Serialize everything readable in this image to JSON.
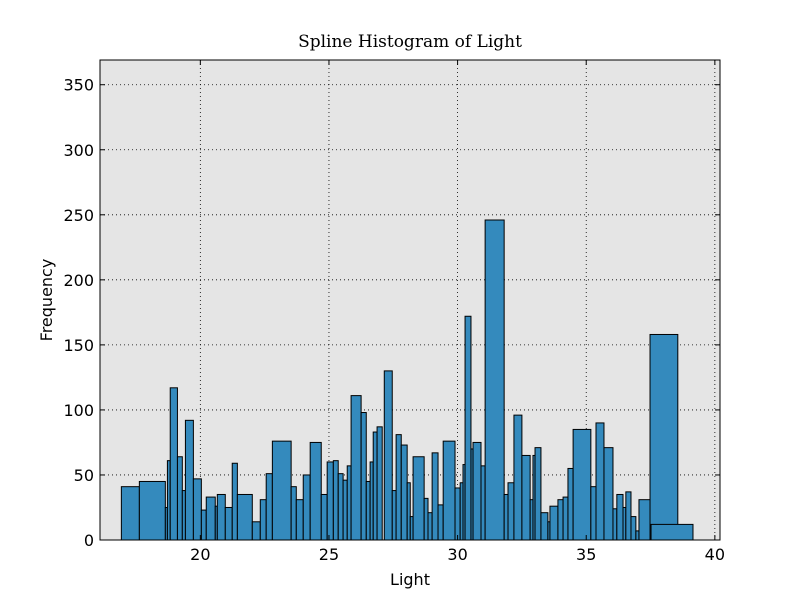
{
  "chart_data": {
    "type": "histogram",
    "title": "Spline Histogram of Light",
    "xlabel": "Light",
    "ylabel": "Frequency",
    "color": "#348abd",
    "background": "#e5e5e5",
    "grid": true,
    "xlim": [
      16.1,
      40.2
    ],
    "ylim": [
      0,
      369
    ],
    "xticks": [
      20,
      25,
      30,
      35,
      40
    ],
    "yticks": [
      0,
      50,
      100,
      150,
      200,
      250,
      300,
      350
    ],
    "x_start": [
      16.93,
      17.63,
      18.64,
      18.72,
      18.83,
      19.11,
      19.3,
      19.42,
      19.73,
      20.04,
      20.23,
      20.58,
      20.66,
      20.97,
      21.24,
      21.44,
      22.02,
      22.33,
      22.56,
      22.8,
      23.53,
      23.73,
      24.0,
      24.27,
      24.7,
      24.93,
      25.17,
      25.36,
      25.55,
      25.71,
      25.86,
      26.25,
      26.45,
      26.6,
      26.72,
      26.87,
      27.15,
      27.46,
      27.61,
      27.81,
      28.04,
      28.16,
      28.27,
      28.7,
      28.85,
      29.01,
      29.24,
      29.44,
      29.9,
      30.1,
      30.21,
      30.29,
      30.52,
      30.6,
      30.91,
      31.07,
      31.81,
      31.96,
      32.19,
      32.5,
      32.82,
      32.93,
      33.01,
      33.24,
      33.51,
      33.59,
      33.9,
      34.1,
      34.29,
      34.49,
      35.18,
      35.38,
      35.69,
      36.04,
      36.19,
      36.43,
      36.54,
      36.74,
      36.93,
      37.05,
      37.48,
      37.52
    ],
    "x_end": [
      17.63,
      18.64,
      18.72,
      18.83,
      19.11,
      19.3,
      19.42,
      19.73,
      20.04,
      20.23,
      20.58,
      20.66,
      20.97,
      21.24,
      21.44,
      22.02,
      22.33,
      22.56,
      22.8,
      23.53,
      23.73,
      24.0,
      24.27,
      24.7,
      24.93,
      25.17,
      25.36,
      25.55,
      25.71,
      25.86,
      26.25,
      26.45,
      26.6,
      26.72,
      26.87,
      27.07,
      27.46,
      27.61,
      27.81,
      28.04,
      28.16,
      28.27,
      28.7,
      28.85,
      29.01,
      29.24,
      29.44,
      29.9,
      30.1,
      30.21,
      30.29,
      30.52,
      30.6,
      30.91,
      31.07,
      31.81,
      31.96,
      32.19,
      32.5,
      32.82,
      32.93,
      33.01,
      33.24,
      33.51,
      33.59,
      33.9,
      34.1,
      34.29,
      34.49,
      35.18,
      35.38,
      35.69,
      36.04,
      36.19,
      36.43,
      36.54,
      36.74,
      36.93,
      37.05,
      37.52,
      38.56,
      39.15
    ],
    "values": [
      41,
      45,
      25,
      61,
      117,
      64,
      38,
      92,
      47,
      23,
      33,
      26,
      35,
      25,
      59,
      35,
      14,
      31,
      51,
      76,
      41,
      31,
      50,
      75,
      35,
      60,
      61,
      51,
      46,
      57,
      111,
      98,
      45,
      60,
      83,
      87,
      130,
      38,
      81,
      73,
      44,
      18,
      64,
      32,
      21,
      67,
      27,
      76,
      40,
      44,
      58,
      172,
      70,
      75,
      57,
      246,
      35,
      44,
      96,
      65,
      31,
      65,
      71,
      21,
      14,
      26,
      31,
      33,
      55,
      85,
      41,
      90,
      71,
      24,
      35,
      25,
      37,
      18,
      7,
      31,
      158,
      12
    ]
  }
}
